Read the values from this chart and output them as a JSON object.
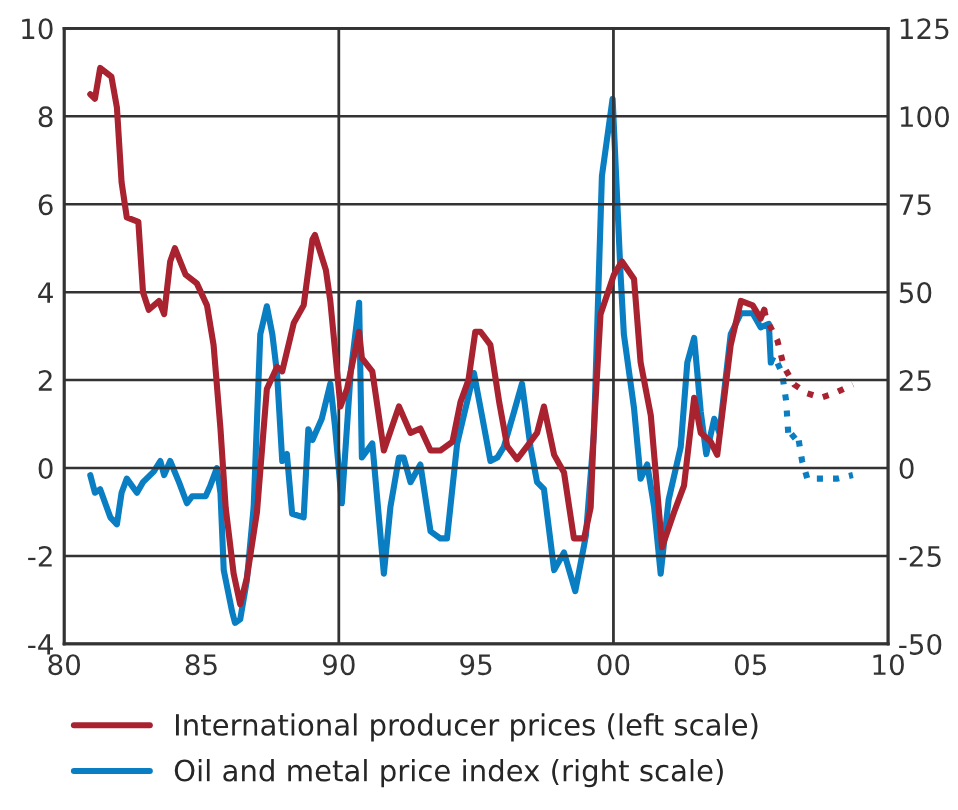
{
  "chart_data": {
    "type": "line",
    "xlim": [
      1980,
      2010
    ],
    "xticks": [
      {
        "value": 1980,
        "label": "80"
      },
      {
        "value": 1985,
        "label": "85"
      },
      {
        "value": 1990,
        "label": "90"
      },
      {
        "value": 1995,
        "label": "95"
      },
      {
        "value": 2000,
        "label": "00"
      },
      {
        "value": 2005,
        "label": "05"
      },
      {
        "value": 2010,
        "label": "10"
      }
    ],
    "ylim": [
      -4,
      10
    ],
    "yticks": [
      -4,
      -2,
      0,
      2,
      4,
      6,
      8,
      10
    ],
    "y2lim": [
      -50,
      125
    ],
    "y2ticks": [
      -50,
      -25,
      0,
      25,
      50,
      75,
      100,
      125
    ],
    "grid": "y",
    "legend": "bottom",
    "line_style": "solid",
    "ref_lines": [
      {
        "axis": "x",
        "value": 1990,
        "color": "#333333"
      },
      {
        "axis": "x",
        "value": 2000,
        "color": "#333333"
      }
    ],
    "series": [
      {
        "name": "International producer prices (left scale)",
        "color": "#a8232f",
        "x": [
          1980.95,
          1981.12,
          1981.31,
          1981.72,
          1981.92,
          1982.09,
          1982.28,
          1982.7,
          1982.87,
          1983.08,
          1983.45,
          1983.64,
          1983.86,
          1984.03,
          1984.42,
          1984.83,
          1985.2,
          1985.44,
          1985.69,
          1985.88,
          1986.17,
          1986.41,
          1986.65,
          1987.02,
          1987.38,
          1987.75,
          1987.94,
          1988.36,
          1988.72,
          1989.04,
          1989.13,
          1989.53,
          1989.69,
          1990.06,
          1990.3,
          1990.74,
          1990.84,
          1991.22,
          1991.64,
          1992.19,
          1992.61,
          1992.97,
          1993.34,
          1993.7,
          1994.14,
          1994.43,
          1994.72,
          1994.97,
          1995.16,
          1995.52,
          1995.84,
          1996.13,
          1996.49,
          1996.86,
          1997.22,
          1997.47,
          1997.84,
          1998.2,
          1998.56,
          1998.93,
          1999.17,
          1999.29,
          1999.53,
          2000.02,
          2000.31,
          2000.75,
          2000.99,
          2001.36,
          2001.77,
          2002.21,
          2002.57,
          2002.94,
          2003.18,
          2003.54,
          2003.78,
          2004.27,
          2004.64,
          2005.07,
          2005.36,
          2005.49
        ],
        "values": [
          8.5,
          8.4,
          9.1,
          8.9,
          8.2,
          6.5,
          5.7,
          5.6,
          4.0,
          3.6,
          3.8,
          3.5,
          4.7,
          5.0,
          4.4,
          4.2,
          3.7,
          2.8,
          0.9,
          -0.9,
          -2.4,
          -3.1,
          -2.5,
          -1.0,
          1.8,
          2.3,
          2.2,
          3.3,
          3.7,
          5.2,
          5.3,
          4.5,
          3.8,
          1.4,
          1.8,
          3.1,
          2.5,
          2.2,
          0.4,
          1.4,
          0.8,
          0.9,
          0.4,
          0.4,
          0.6,
          1.5,
          2.0,
          3.1,
          3.1,
          2.8,
          1.5,
          0.5,
          0.2,
          0.5,
          0.8,
          1.4,
          0.3,
          -0.1,
          -1.6,
          -1.6,
          -0.9,
          0.9,
          3.5,
          4.4,
          4.7,
          4.3,
          2.4,
          1.2,
          -1.8,
          -1.0,
          -0.4,
          1.6,
          0.8,
          0.6,
          0.3,
          2.8,
          3.8,
          3.7,
          3.4,
          3.6
        ]
      },
      {
        "color": "#a8232f",
        "line_style": "dotted",
        "x": [
          2005.49,
          2005.56,
          2005.97,
          2006.21,
          2006.58,
          2007.06,
          2007.55,
          2008.04,
          2008.72
        ],
        "values": [
          3.6,
          3.4,
          2.9,
          2.3,
          1.9,
          1.7,
          1.6,
          1.7,
          1.9
        ]
      },
      {
        "name": "Oil and metal price index (right scale)",
        "color": "#0a7ec2",
        "axis": "y2",
        "x": [
          1980.95,
          1981.12,
          1981.31,
          1981.68,
          1981.92,
          1982.09,
          1982.28,
          1982.65,
          1982.87,
          1983.26,
          1983.5,
          1983.64,
          1983.86,
          1984.18,
          1984.47,
          1984.66,
          1985.15,
          1985.32,
          1985.56,
          1985.69,
          1985.81,
          1986.12,
          1986.22,
          1986.41,
          1986.65,
          1986.9,
          1987.14,
          1987.38,
          1987.58,
          1987.75,
          1987.94,
          1988.11,
          1988.3,
          1988.72,
          1988.89,
          1989.04,
          1989.38,
          1989.69,
          1989.86,
          1990.11,
          1990.43,
          1990.74,
          1990.84,
          1991.22,
          1991.64,
          1991.88,
          1992.19,
          1992.36,
          1992.61,
          1992.97,
          1993.34,
          1993.7,
          1993.94,
          1994.31,
          1994.92,
          1995.21,
          1995.52,
          1995.77,
          1996.01,
          1996.38,
          1996.67,
          1996.98,
          1997.22,
          1997.47,
          1997.84,
          1998.2,
          1998.61,
          1998.93,
          1999.0,
          1999.29,
          1999.58,
          1999.97,
          2000.26,
          2000.38,
          2000.75,
          2000.99,
          2001.23,
          2001.48,
          2001.72,
          2002.01,
          2002.45,
          2002.69,
          2002.94,
          2003.18,
          2003.38,
          2003.67,
          2003.86,
          2004.27,
          2004.64,
          2005.07,
          2005.36,
          2005.66,
          2005.73
        ],
        "values": [
          -2,
          -7,
          -6,
          -14,
          -16,
          -7,
          -3,
          -7,
          -4,
          -1,
          2,
          -2,
          2,
          -4,
          -10,
          -8,
          -8,
          -5,
          0,
          -7,
          -29,
          -41,
          -44,
          -43,
          -32,
          -11,
          38,
          46,
          38,
          27,
          2,
          4,
          -13,
          -14,
          11,
          8,
          14,
          24,
          12,
          -10,
          27,
          47,
          3,
          7,
          -30,
          -11,
          3,
          3,
          -4,
          1,
          -18,
          -20,
          -20,
          7,
          27,
          15,
          2,
          3,
          6,
          16,
          24,
          6,
          -4,
          -6,
          -29,
          -24,
          -35,
          -22,
          -19,
          10,
          83,
          105,
          55,
          38,
          17,
          -3,
          1,
          -11,
          -30,
          -9,
          6,
          30,
          37,
          16,
          4,
          14,
          10,
          38,
          44,
          44,
          40,
          41,
          30
        ]
      },
      {
        "color": "#0a7ec2",
        "axis": "y2",
        "line_style": "dotted",
        "x": [
          2005.73,
          2005.85,
          2006.14,
          2006.29,
          2006.38,
          2006.7,
          2006.87,
          2007.06,
          2007.55,
          2008.16,
          2008.72
        ],
        "values": [
          30,
          32,
          27,
          19,
          8,
          10,
          2,
          -3,
          -3,
          -3,
          -2
        ]
      }
    ]
  }
}
